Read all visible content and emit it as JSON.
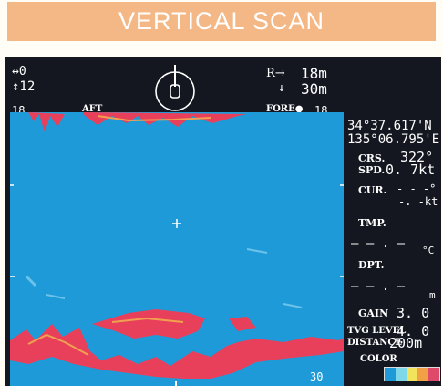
{
  "title": "VERTICAL SCAN",
  "top_left": {
    "line1": "↔0",
    "line2": "↕12"
  },
  "top_right": {
    "r_label": "R→",
    "r_value": "18m",
    "d_label": "↓",
    "d_value": "30m"
  },
  "scale_row": {
    "left": "18",
    "aft": "AFT",
    "fore": "FORE●",
    "right": "18"
  },
  "bottom_depth": "30",
  "position": {
    "lat": "34°37.617'N",
    "lon": "135°06.795'E"
  },
  "crs": {
    "label": "CRS.",
    "value": "322°"
  },
  "spd": {
    "label": "SPD.",
    "value": "0. 7kt"
  },
  "cur": {
    "label": "CUR.",
    "value1": "- - -°",
    "value2": "-. -kt"
  },
  "tmp": {
    "label": "TMP.",
    "value": "— — . —",
    "unit": "°C"
  },
  "dpt": {
    "label": "DPT.",
    "value": "— — . —",
    "unit": "m"
  },
  "gain": {
    "label": "GAIN",
    "value": "3. 0"
  },
  "tvg": {
    "label": "TVG LEVEL",
    "value": "4. 0"
  },
  "distance": {
    "label": "DISTANCE",
    "value": "200m"
  },
  "color": {
    "label": "COLOR",
    "swatches": [
      "#1f9ad8",
      "#7fd8e8",
      "#f3e35a",
      "#f2a046",
      "#e04a6a"
    ]
  },
  "colors": {
    "title_bar": "#f4b887",
    "screen": "#141720",
    "water": "#1f9ad8",
    "echo_red": "#e8405a",
    "echo_orange": "#f0a050"
  }
}
